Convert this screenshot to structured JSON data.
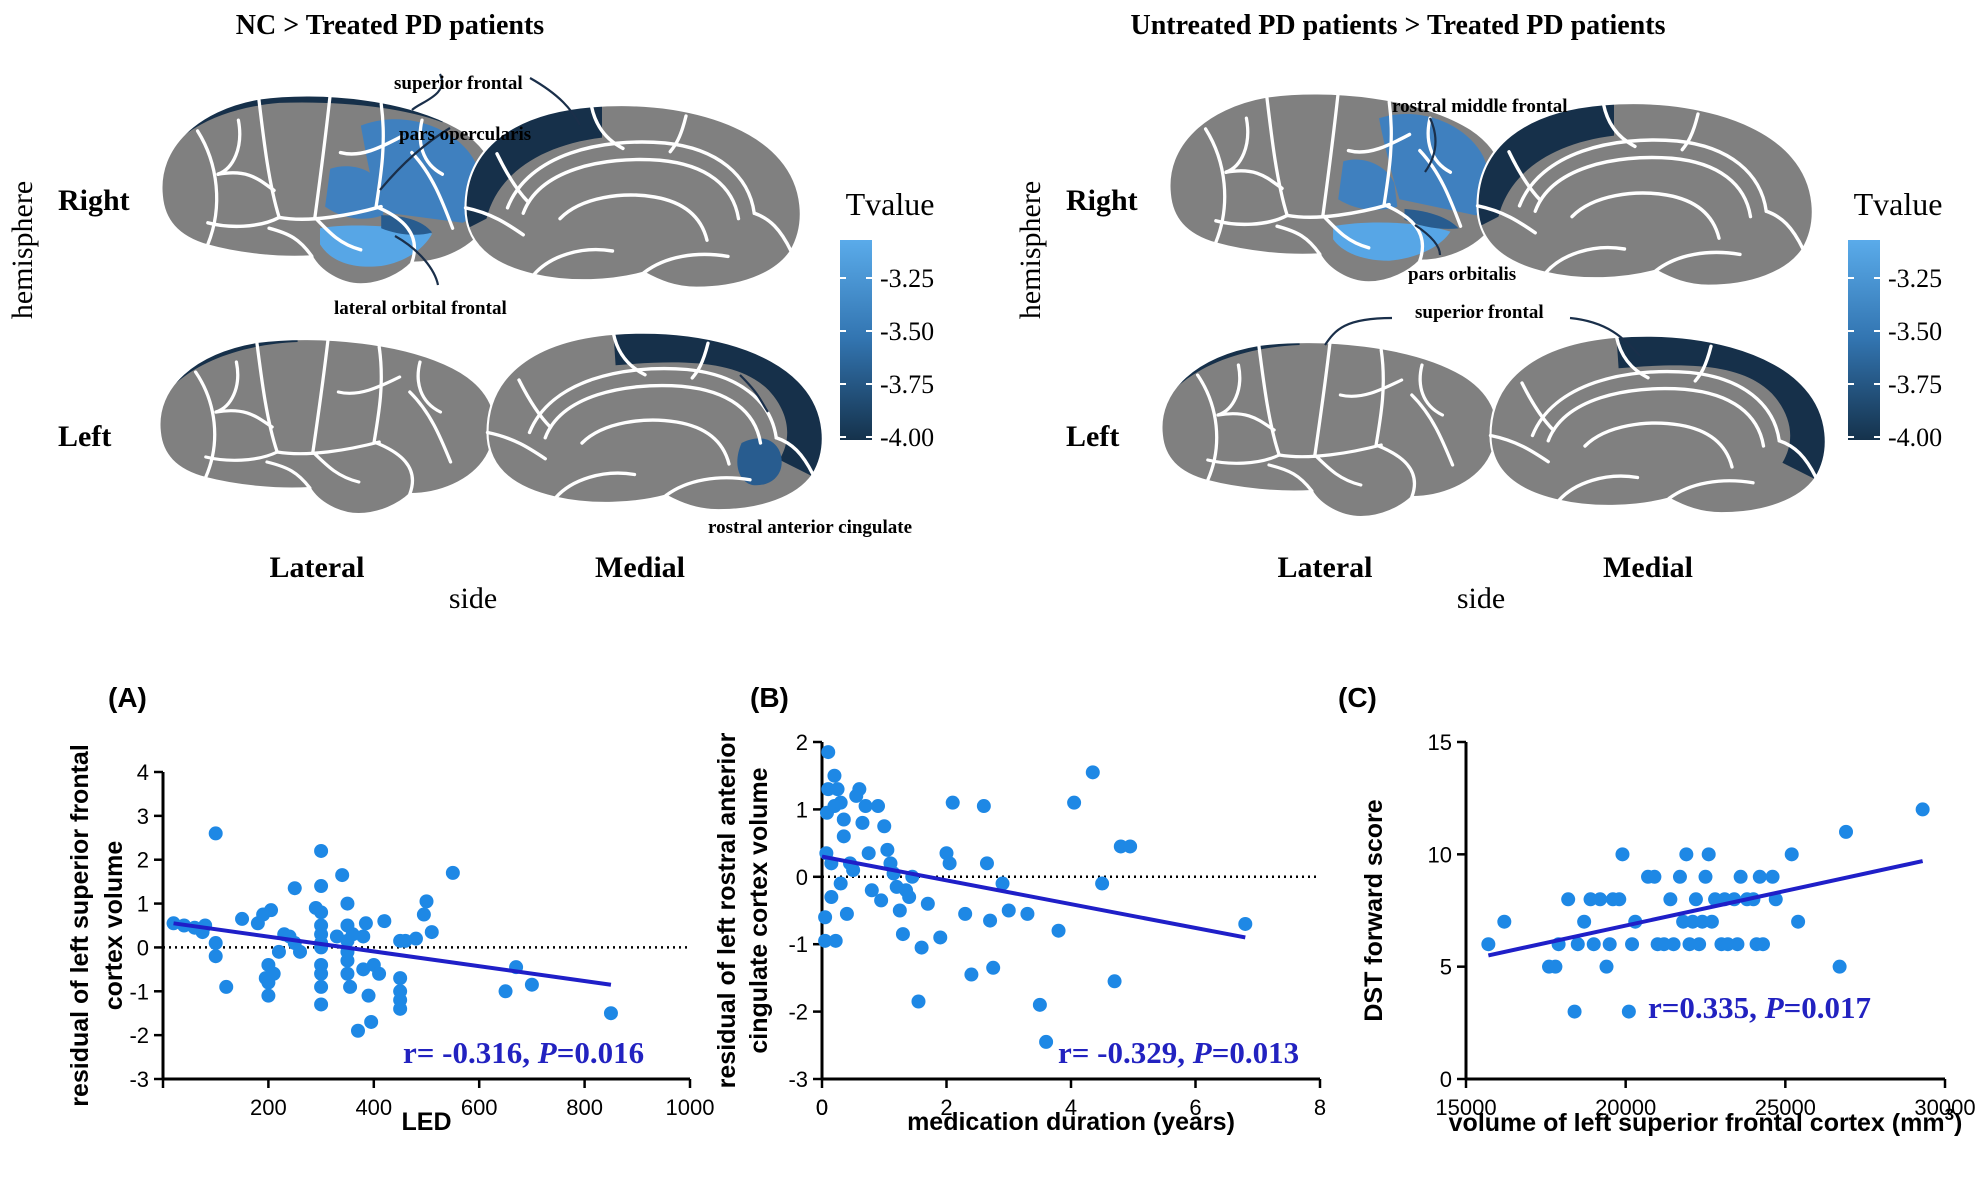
{
  "colors": {
    "gyrus": "#808080",
    "sulcus": "#ffffff",
    "scale_light": "#5aabea",
    "scale_mid": "#3274b0",
    "scale_dark": "#15324c",
    "region_t325": "#57a6e6",
    "region_t350": "#3f80bf",
    "region_t375": "#285c8f",
    "region_t400": "#16304a",
    "point": "#1e88e5",
    "fit_line": "#1f1fc8",
    "stats_text": "#2222c0"
  },
  "brain_panels": [
    {
      "title": "NC > Treated PD patients",
      "hemisphere_label": "hemisphere",
      "side_label": "side",
      "row_labels": [
        "Right",
        "Left"
      ],
      "col_labels": [
        "Lateral",
        "Medial"
      ],
      "legend_title": "Tvalue",
      "legend_ticks": [
        "-3.25",
        "-3.50",
        "-3.75",
        "-4.00"
      ],
      "annotations": [
        "superior frontal",
        "pars opercularis",
        "lateral orbital frontal",
        "rostral anterior cingulate"
      ]
    },
    {
      "title": "Untreated PD patients > Treated PD patients",
      "hemisphere_label": "hemisphere",
      "side_label": "side",
      "row_labels": [
        "Right",
        "Left"
      ],
      "col_labels": [
        "Lateral",
        "Medial"
      ],
      "legend_title": "Tvalue",
      "legend_ticks": [
        "-3.25",
        "-3.50",
        "-3.75",
        "-4.00"
      ],
      "annotations": [
        "rostral middle frontal",
        "pars orbitalis",
        "superior frontal"
      ]
    }
  ],
  "chart_data": [
    {
      "type": "scatter",
      "panel_label": "(A)",
      "xlabel": "LED",
      "ylabel_lines": [
        "residual of left superior frontal",
        "cortex volume"
      ],
      "xlim": [
        0,
        1000
      ],
      "ylim": [
        -3,
        4
      ],
      "xticks": [
        200,
        400,
        600,
        800,
        1000
      ],
      "yticks": [
        4,
        3,
        2,
        1,
        0,
        -1,
        -2,
        -3
      ],
      "reference_line_y": 0,
      "fit_line": {
        "x": [
          20,
          850
        ],
        "y": [
          0.55,
          -0.85
        ]
      },
      "stats_prefix": "r= -0.316, ",
      "stats_p": "P",
      "stats_value": "=0.016",
      "points": [
        [
          20,
          0.55
        ],
        [
          40,
          0.5
        ],
        [
          60,
          0.45
        ],
        [
          75,
          0.35
        ],
        [
          80,
          0.5
        ],
        [
          100,
          -0.2
        ],
        [
          100,
          0.1
        ],
        [
          100,
          2.6
        ],
        [
          120,
          -0.9
        ],
        [
          150,
          0.65
        ],
        [
          180,
          0.55
        ],
        [
          190,
          0.75
        ],
        [
          195,
          -0.7
        ],
        [
          200,
          -0.4
        ],
        [
          200,
          -0.8
        ],
        [
          200,
          -1.1
        ],
        [
          205,
          0.85
        ],
        [
          210,
          -0.6
        ],
        [
          220,
          -0.1
        ],
        [
          230,
          0.3
        ],
        [
          240,
          0.25
        ],
        [
          250,
          1.35
        ],
        [
          250,
          0.1
        ],
        [
          260,
          -0.1
        ],
        [
          290,
          0.9
        ],
        [
          300,
          2.2
        ],
        [
          300,
          1.4
        ],
        [
          300,
          0.8
        ],
        [
          300,
          0.5
        ],
        [
          300,
          0.3
        ],
        [
          300,
          0.1
        ],
        [
          300,
          0
        ],
        [
          300,
          -0.4
        ],
        [
          300,
          -0.6
        ],
        [
          300,
          -0.9
        ],
        [
          300,
          -1.3
        ],
        [
          330,
          0.25
        ],
        [
          340,
          1.65
        ],
        [
          350,
          1.0
        ],
        [
          350,
          0.5
        ],
        [
          350,
          0.15
        ],
        [
          350,
          -0.1
        ],
        [
          350,
          -0.3
        ],
        [
          350,
          -0.6
        ],
        [
          355,
          -0.9
        ],
        [
          360,
          0.3
        ],
        [
          370,
          -1.9
        ],
        [
          380,
          -0.5
        ],
        [
          380,
          0.25
        ],
        [
          385,
          0.55
        ],
        [
          390,
          -1.1
        ],
        [
          395,
          -1.7
        ],
        [
          400,
          -0.4
        ],
        [
          410,
          -0.6
        ],
        [
          420,
          0.6
        ],
        [
          450,
          0.15
        ],
        [
          450,
          -0.7
        ],
        [
          450,
          -1.0
        ],
        [
          450,
          -1.2
        ],
        [
          450,
          -1.4
        ],
        [
          460,
          0.15
        ],
        [
          480,
          0.2
        ],
        [
          495,
          0.75
        ],
        [
          500,
          1.05
        ],
        [
          510,
          0.35
        ],
        [
          550,
          1.7
        ],
        [
          650,
          -1.0
        ],
        [
          670,
          -0.45
        ],
        [
          700,
          -0.85
        ],
        [
          850,
          -1.5
        ]
      ]
    },
    {
      "type": "scatter",
      "panel_label": "(B)",
      "xlabel": "medication duration (years)",
      "ylabel_lines": [
        "residual of left rostral anterior",
        "cingulate cortex volume"
      ],
      "xlim": [
        0,
        8
      ],
      "ylim": [
        -3,
        2
      ],
      "xticks": [
        0,
        2,
        4,
        6,
        8
      ],
      "yticks": [
        2,
        1,
        0,
        -1,
        -2,
        -3
      ],
      "reference_line_y": 0,
      "fit_line": {
        "x": [
          0,
          6.8
        ],
        "y": [
          0.3,
          -0.9
        ]
      },
      "stats_prefix": "r= -0.329, ",
      "stats_p": "P",
      "stats_value": "=0.013",
      "points": [
        [
          0.05,
          -0.95
        ],
        [
          0.05,
          -0.6
        ],
        [
          0.07,
          0.35
        ],
        [
          0.08,
          0.95
        ],
        [
          0.1,
          1.3
        ],
        [
          0.1,
          1.85
        ],
        [
          0.15,
          0.2
        ],
        [
          0.15,
          -0.3
        ],
        [
          0.2,
          1.05
        ],
        [
          0.2,
          1.5
        ],
        [
          0.22,
          -0.95
        ],
        [
          0.25,
          1.3
        ],
        [
          0.3,
          1.1
        ],
        [
          0.3,
          -0.1
        ],
        [
          0.35,
          0.6
        ],
        [
          0.35,
          0.85
        ],
        [
          0.4,
          -0.55
        ],
        [
          0.45,
          0.2
        ],
        [
          0.5,
          0.1
        ],
        [
          0.55,
          1.2
        ],
        [
          0.6,
          1.3
        ],
        [
          0.65,
          0.8
        ],
        [
          0.7,
          1.05
        ],
        [
          0.75,
          0.35
        ],
        [
          0.8,
          -0.2
        ],
        [
          0.9,
          1.05
        ],
        [
          0.95,
          -0.35
        ],
        [
          1.0,
          0.75
        ],
        [
          1.05,
          0.4
        ],
        [
          1.1,
          0.2
        ],
        [
          1.15,
          0.05
        ],
        [
          1.2,
          -0.15
        ],
        [
          1.25,
          -0.5
        ],
        [
          1.3,
          -0.85
        ],
        [
          1.35,
          -0.2
        ],
        [
          1.4,
          -0.3
        ],
        [
          1.45,
          0.0
        ],
        [
          1.55,
          -1.85
        ],
        [
          1.6,
          -1.05
        ],
        [
          1.7,
          -0.4
        ],
        [
          1.9,
          -0.9
        ],
        [
          2.0,
          0.35
        ],
        [
          2.05,
          0.2
        ],
        [
          2.1,
          1.1
        ],
        [
          2.3,
          -0.55
        ],
        [
          2.4,
          -1.45
        ],
        [
          2.6,
          1.05
        ],
        [
          2.65,
          0.2
        ],
        [
          2.7,
          -0.65
        ],
        [
          2.75,
          -1.35
        ],
        [
          2.9,
          -0.1
        ],
        [
          3.0,
          -0.5
        ],
        [
          3.3,
          -0.55
        ],
        [
          3.5,
          -1.9
        ],
        [
          3.6,
          -2.45
        ],
        [
          3.8,
          -0.8
        ],
        [
          4.05,
          1.1
        ],
        [
          4.35,
          1.55
        ],
        [
          4.5,
          -0.1
        ],
        [
          4.7,
          -1.55
        ],
        [
          4.8,
          0.45
        ],
        [
          4.95,
          0.45
        ],
        [
          6.8,
          -0.7
        ]
      ]
    },
    {
      "type": "scatter",
      "panel_label": "(C)",
      "xlabel": "volume of left superior frontal cortex (mm",
      "xlabel_sup": "3",
      "xlabel_end": ")",
      "ylabel_lines": [
        "DST forward score"
      ],
      "xlim": [
        15000,
        30000
      ],
      "ylim": [
        0,
        15
      ],
      "xticks": [
        15000,
        20000,
        25000,
        30000
      ],
      "yticks": [
        15,
        10,
        5,
        0
      ],
      "fit_line": {
        "x": [
          15700,
          29300
        ],
        "y": [
          5.5,
          9.7
        ]
      },
      "stats_prefix": "r=0.335, ",
      "stats_p": "P",
      "stats_value": "=0.017",
      "points": [
        [
          15700,
          6
        ],
        [
          16200,
          7
        ],
        [
          17600,
          5
        ],
        [
          17800,
          5
        ],
        [
          17900,
          6
        ],
        [
          18200,
          8
        ],
        [
          18400,
          3
        ],
        [
          18500,
          6
        ],
        [
          18700,
          7
        ],
        [
          18900,
          8
        ],
        [
          19000,
          6
        ],
        [
          19200,
          8
        ],
        [
          19400,
          5
        ],
        [
          19500,
          6
        ],
        [
          19600,
          8
        ],
        [
          19800,
          8
        ],
        [
          19900,
          10
        ],
        [
          20100,
          3
        ],
        [
          20200,
          6
        ],
        [
          20300,
          7
        ],
        [
          20700,
          9
        ],
        [
          20900,
          9
        ],
        [
          21000,
          6
        ],
        [
          21200,
          6
        ],
        [
          21400,
          8
        ],
        [
          21500,
          6
        ],
        [
          21700,
          9
        ],
        [
          21800,
          7
        ],
        [
          21900,
          10
        ],
        [
          22000,
          6
        ],
        [
          22100,
          7
        ],
        [
          22200,
          8
        ],
        [
          22300,
          6
        ],
        [
          22400,
          7
        ],
        [
          22500,
          9
        ],
        [
          22600,
          10
        ],
        [
          22700,
          7
        ],
        [
          22800,
          8
        ],
        [
          23000,
          6
        ],
        [
          23100,
          8
        ],
        [
          23200,
          6
        ],
        [
          23400,
          8
        ],
        [
          23500,
          6
        ],
        [
          23600,
          9
        ],
        [
          23800,
          8
        ],
        [
          24000,
          8
        ],
        [
          24100,
          6
        ],
        [
          24200,
          9
        ],
        [
          24300,
          6
        ],
        [
          24600,
          9
        ],
        [
          24700,
          8
        ],
        [
          25200,
          10
        ],
        [
          25400,
          7
        ],
        [
          26700,
          5
        ],
        [
          26900,
          11
        ],
        [
          29300,
          12
        ]
      ]
    }
  ]
}
